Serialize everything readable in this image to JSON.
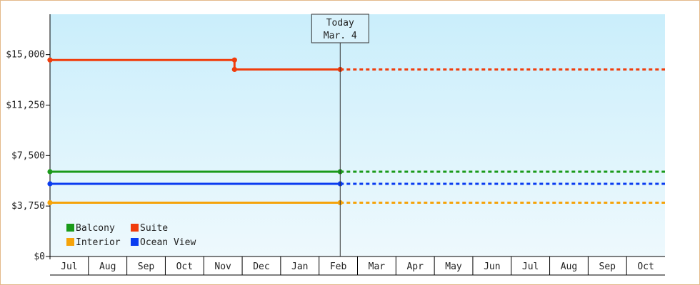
{
  "chart_data": {
    "type": "line",
    "title": "",
    "xlabel": "",
    "ylabel": "",
    "ylim": [
      0,
      18000
    ],
    "yticks": [
      0,
      3750,
      7500,
      11250,
      15000
    ],
    "ytick_labels": [
      "$0",
      "$3,750",
      "$7,500",
      "$11,250",
      "$15,000"
    ],
    "months": [
      "Jul",
      "Aug",
      "Sep",
      "Oct",
      "Nov",
      "Dec",
      "Jan",
      "Feb",
      "Mar",
      "Apr",
      "May",
      "Jun",
      "Jul",
      "Aug",
      "Sep",
      "Oct"
    ],
    "today": {
      "label_line1": "Today",
      "label_line2": "Mar. 4",
      "month_position": 7.55
    },
    "legend_placement": "bottom-left",
    "series": [
      {
        "name": "Balcony",
        "color": "#1a9a1a",
        "points": [
          [
            0,
            6300
          ],
          [
            7.55,
            6300
          ]
        ],
        "projected_value": 6300
      },
      {
        "name": "Suite",
        "color": "#f03c0c",
        "points": [
          [
            0,
            14600
          ],
          [
            4.8,
            14600
          ],
          [
            4.8,
            13900
          ],
          [
            7.55,
            13900
          ]
        ],
        "projected_value": 13900
      },
      {
        "name": "Interior",
        "color": "#f5a30a",
        "points": [
          [
            0,
            4000
          ],
          [
            7.55,
            4000
          ]
        ],
        "projected_value": 4000
      },
      {
        "name": "Ocean View",
        "color": "#0a3cf0",
        "points": [
          [
            0,
            5400
          ],
          [
            7.55,
            5400
          ]
        ],
        "projected_value": 5400
      }
    ],
    "legend_order": [
      "Balcony",
      "Suite",
      "Interior",
      "Ocean View"
    ]
  }
}
